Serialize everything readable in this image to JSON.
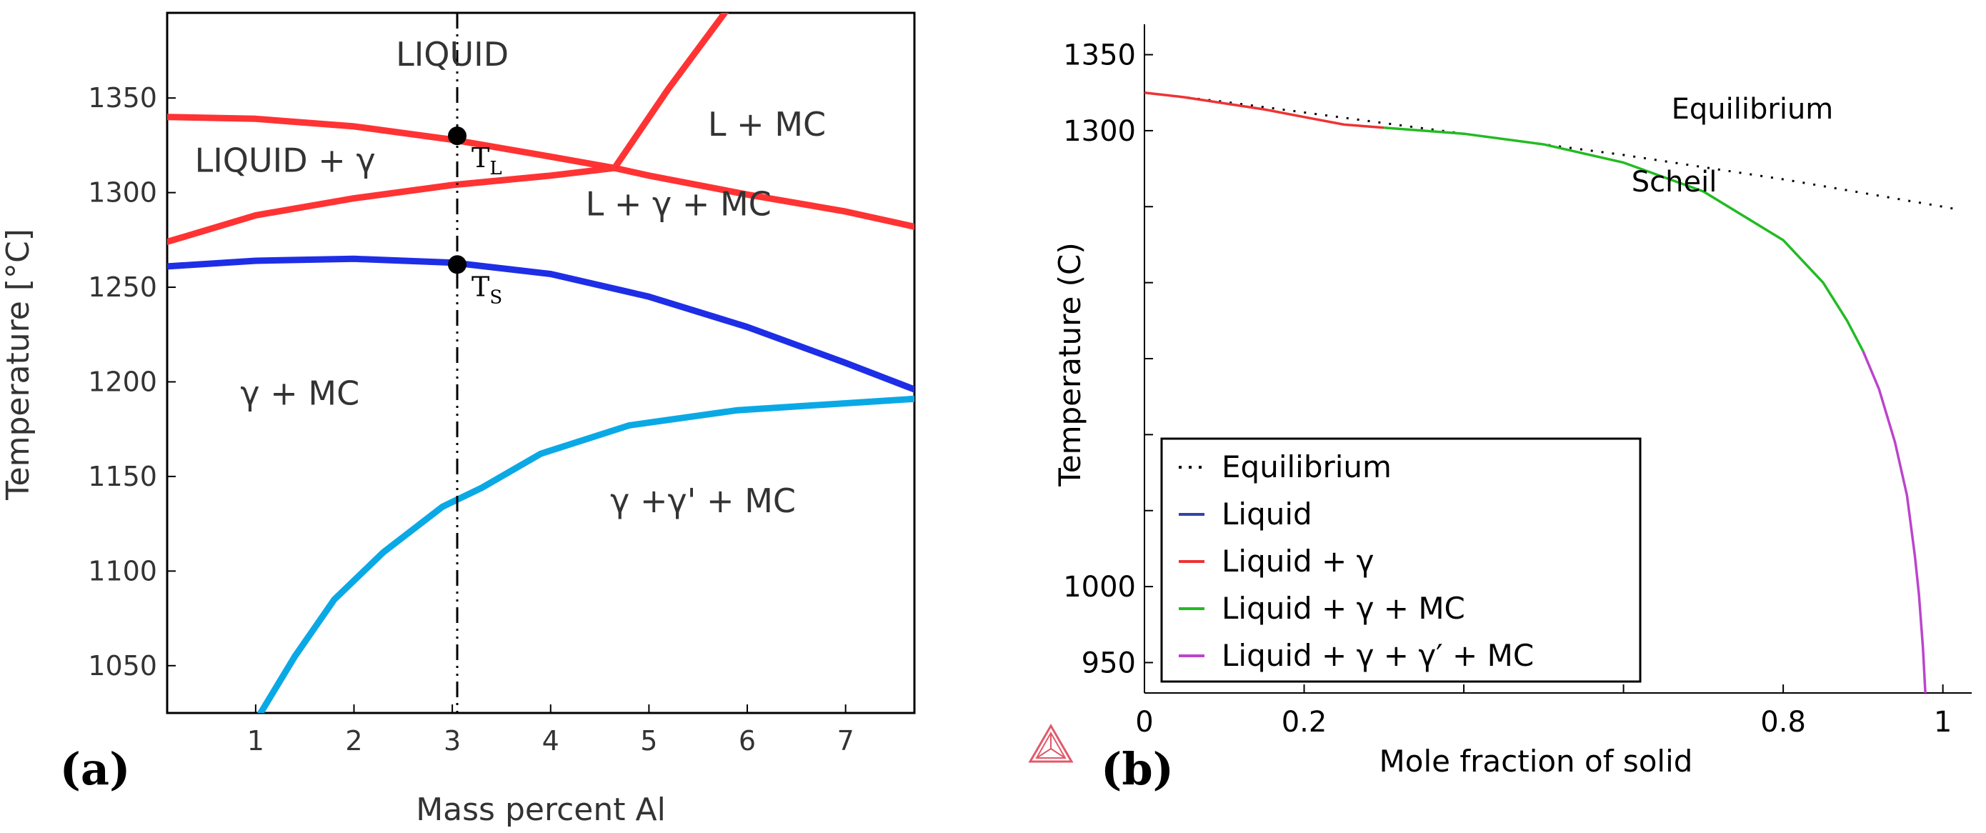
{
  "chart_data": [
    {
      "panel_label": "(a)",
      "type": "line",
      "xlabel": "Mass percent Al",
      "ylabel": "Temperature [°C]",
      "xlim": [
        0.1,
        7.7
      ],
      "ylim": [
        1025,
        1395
      ],
      "xticks": [
        1,
        2,
        3,
        4,
        5,
        6,
        7
      ],
      "yticks": [
        1050,
        1100,
        1150,
        1200,
        1250,
        1300,
        1350
      ],
      "colors": {
        "red": "#ff3333",
        "blue": "#1e2ee6",
        "cyan": "#0aa9e6"
      },
      "series": [
        {
          "name": "liquidus-gamma",
          "color": "red",
          "x": [
            0.1,
            1,
            2,
            3,
            4,
            4.65,
            5,
            6,
            7,
            7.7
          ],
          "y": [
            1340,
            1339,
            1335,
            1328,
            1319,
            1313,
            1309,
            1299,
            1290,
            1282
          ]
        },
        {
          "name": "gamma-mc-start",
          "color": "red",
          "x": [
            0.1,
            1,
            2,
            3,
            4,
            4.65
          ],
          "y": [
            1274,
            1288,
            1297,
            1304,
            1309,
            1313
          ]
        },
        {
          "name": "liquidus-mc",
          "color": "red",
          "x": [
            4.65,
            5.2,
            5.8
          ],
          "y": [
            1313,
            1355,
            1397
          ]
        },
        {
          "name": "solidus",
          "color": "blue",
          "x": [
            0.1,
            1,
            2,
            3,
            4,
            5,
            6,
            7,
            7.7
          ],
          "y": [
            1261,
            1264,
            1265,
            1263,
            1257,
            1245,
            1229,
            1210,
            1196
          ]
        },
        {
          "name": "gamma-prime-solvus",
          "color": "cyan",
          "x": [
            1.05,
            1.4,
            1.8,
            2.3,
            2.9,
            3.3,
            3.9,
            4.8,
            5.9,
            7.7
          ],
          "y": [
            1025,
            1055,
            1085,
            1110,
            1134,
            1144,
            1162,
            1177,
            1185,
            1191
          ]
        }
      ],
      "vline_x": 3.05,
      "points": [
        {
          "label": "T",
          "sub": "L",
          "x": 3.05,
          "y": 1330
        },
        {
          "label": "T",
          "sub": "S",
          "x": 3.05,
          "y": 1262
        }
      ],
      "regions": [
        {
          "text": "LIQUID",
          "x": 3.0,
          "y": 1367
        },
        {
          "text": "L + MC",
          "x": 6.2,
          "y": 1330
        },
        {
          "text": "LIQUID + γ",
          "x": 1.3,
          "y": 1311
        },
        {
          "text": "L + γ + MC",
          "x": 5.3,
          "y": 1288
        },
        {
          "text": "γ + MC",
          "x": 1.45,
          "y": 1188
        },
        {
          "text": "γ +γ' + MC",
          "x": 5.55,
          "y": 1131
        }
      ]
    },
    {
      "panel_label": "(b)",
      "type": "line",
      "xlabel": "Mole fraction of solid",
      "ylabel": "Temperature (C)",
      "xlim": [
        0,
        1.02
      ],
      "ylim": [
        930,
        1370
      ],
      "xticks": [
        0,
        0.2,
        0.4,
        0.6,
        0.8,
        1
      ],
      "xtick_labels": [
        "0",
        "0.2",
        "",
        "",
        "0.8",
        "1"
      ],
      "yticks": [
        950,
        1000,
        1050,
        1100,
        1150,
        1200,
        1250,
        1300,
        1350
      ],
      "ytick_labels": [
        "950",
        "1000",
        "",
        "",
        "",
        "",
        "",
        "1300",
        "1350"
      ],
      "series": [
        {
          "name": "Equilibrium",
          "color": "#000000",
          "style": "dotted",
          "x": [
            0,
            0.1,
            0.2,
            0.3,
            0.4,
            0.5,
            0.6,
            0.7,
            0.8,
            0.9,
            1.0,
            1.02
          ],
          "y": [
            1325,
            1319,
            1312,
            1305,
            1298,
            1291,
            1284,
            1276,
            1268,
            1259,
            1250,
            1248
          ]
        },
        {
          "name": "Liquid + γ",
          "color": "#ee3333",
          "style": "solid",
          "x": [
            0,
            0.05,
            0.1,
            0.15,
            0.2,
            0.25,
            0.3
          ],
          "y": [
            1325,
            1322,
            1318,
            1314,
            1309,
            1304,
            1302
          ]
        },
        {
          "name": "Liquid + γ + MC",
          "color": "#22bb22",
          "style": "solid",
          "x": [
            0.3,
            0.4,
            0.5,
            0.6,
            0.7,
            0.8,
            0.85,
            0.88,
            0.9
          ],
          "y": [
            1302,
            1298,
            1291,
            1279,
            1260,
            1228,
            1200,
            1175,
            1155
          ]
        },
        {
          "name": "Liquid + γ + γ′ + MC",
          "color": "#bb44cc",
          "style": "solid",
          "x": [
            0.9,
            0.92,
            0.94,
            0.955,
            0.965,
            0.97,
            0.975,
            0.978
          ],
          "y": [
            1155,
            1130,
            1095,
            1060,
            1020,
            995,
            960,
            930
          ]
        }
      ],
      "annotations": [
        {
          "text": "Equilibrium",
          "x": 0.66,
          "y": 1308
        },
        {
          "text": "Scheil",
          "x": 0.61,
          "y": 1260
        }
      ],
      "legend": {
        "placement": "bottom-left",
        "entries": [
          {
            "label": "Equilibrium",
            "color": "#000000",
            "style": "dotted"
          },
          {
            "label": "Liquid",
            "color": "#3344aa",
            "style": "solid"
          },
          {
            "label": "Liquid + γ",
            "color": "#ee3333",
            "style": "solid"
          },
          {
            "label": "Liquid + γ + MC",
            "color": "#22bb22",
            "style": "solid"
          },
          {
            "label": "Liquid + γ + γ′ + MC",
            "color": "#bb44cc",
            "style": "solid"
          }
        ]
      }
    }
  ]
}
